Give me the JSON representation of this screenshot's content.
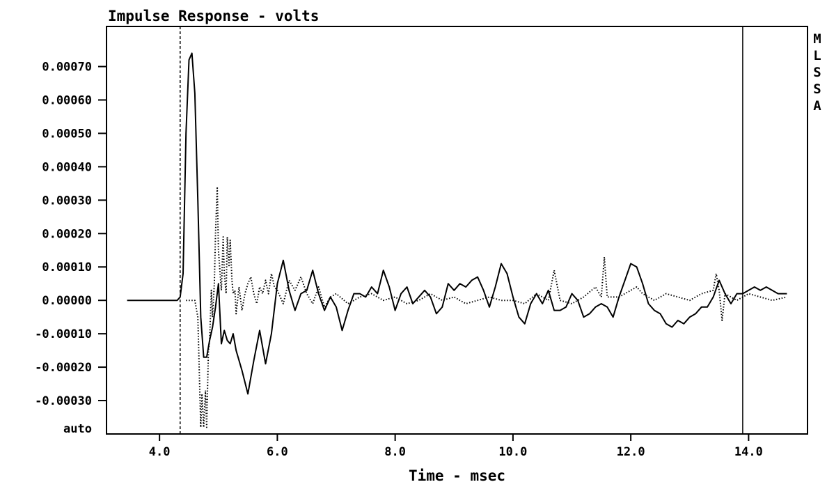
{
  "chart_data": {
    "type": "line",
    "title": "Impulse Response - volts",
    "xlabel": "Time - msec",
    "ylabel": "",
    "side_label": [
      "M",
      "L",
      "S",
      "S",
      "A"
    ],
    "xlim": [
      3.1,
      15.0
    ],
    "ylim": [
      -0.0004,
      0.00082
    ],
    "x_ticks": [
      {
        "value": 4.0,
        "label": "4.0"
      },
      {
        "value": 6.0,
        "label": "6.0"
      },
      {
        "value": 8.0,
        "label": "8.0"
      },
      {
        "value": 10.0,
        "label": "10.0"
      },
      {
        "value": 12.0,
        "label": "12.0"
      },
      {
        "value": 14.0,
        "label": "14.0"
      }
    ],
    "y_ticks": [
      {
        "value": 0.0007,
        "label": "0.00070"
      },
      {
        "value": 0.0006,
        "label": "0.00060"
      },
      {
        "value": 0.0005,
        "label": "0.00050"
      },
      {
        "value": 0.0004,
        "label": "0.00040"
      },
      {
        "value": 0.0003,
        "label": "0.00030"
      },
      {
        "value": 0.0002,
        "label": "0.00020"
      },
      {
        "value": 0.0001,
        "label": "0.00010"
      },
      {
        "value": 0.0,
        "label": "0.00000"
      },
      {
        "value": -0.0001,
        "label": "-0.00010"
      },
      {
        "value": -0.0002,
        "label": "-0.00020"
      },
      {
        "value": -0.0003,
        "label": "-0.00030"
      }
    ],
    "y_bottom_label": "auto",
    "grid": false,
    "markers": [
      {
        "x": 4.35,
        "style": "dashed"
      },
      {
        "x": 13.9,
        "style": "solid"
      }
    ],
    "series": [
      {
        "style": "solid",
        "x": [
          3.45,
          4.0,
          4.3,
          4.35,
          4.4,
          4.45,
          4.5,
          4.55,
          4.6,
          4.65,
          4.7,
          4.75,
          4.8,
          4.85,
          4.9,
          4.95,
          5.0,
          5.05,
          5.1,
          5.15,
          5.2,
          5.25,
          5.3,
          5.4,
          5.5,
          5.6,
          5.7,
          5.8,
          5.9,
          6.0,
          6.1,
          6.2,
          6.3,
          6.4,
          6.5,
          6.6,
          6.7,
          6.8,
          6.9,
          7.0,
          7.1,
          7.2,
          7.3,
          7.4,
          7.5,
          7.6,
          7.7,
          7.8,
          7.9,
          8.0,
          8.1,
          8.2,
          8.3,
          8.4,
          8.5,
          8.6,
          8.7,
          8.8,
          8.9,
          9.0,
          9.1,
          9.2,
          9.3,
          9.4,
          9.5,
          9.6,
          9.7,
          9.8,
          9.9,
          10.0,
          10.1,
          10.2,
          10.3,
          10.4,
          10.5,
          10.6,
          10.7,
          10.8,
          10.9,
          11.0,
          11.1,
          11.2,
          11.3,
          11.4,
          11.5,
          11.6,
          11.7,
          11.8,
          11.9,
          12.0,
          12.1,
          12.2,
          12.3,
          12.4,
          12.5,
          12.6,
          12.7,
          12.8,
          12.9,
          13.0,
          13.1,
          13.2,
          13.3,
          13.4,
          13.5,
          13.6,
          13.7,
          13.8,
          13.9,
          14.0,
          14.1,
          14.2,
          14.3,
          14.4,
          14.5,
          14.65
        ],
        "y": [
          0.0,
          0.0,
          0.0,
          1e-05,
          8e-05,
          0.0005,
          0.00072,
          0.00074,
          0.00062,
          0.0003,
          -5e-05,
          -0.00017,
          -0.00017,
          -0.00012,
          -8e-05,
          -2e-05,
          5e-05,
          -0.00013,
          -9e-05,
          -0.00012,
          -0.00013,
          -0.0001,
          -0.00015,
          -0.00021,
          -0.00028,
          -0.00018,
          -9e-05,
          -0.00019,
          -0.0001,
          5e-05,
          0.00012,
          3e-05,
          -3e-05,
          2e-05,
          3e-05,
          9e-05,
          2e-05,
          -3e-05,
          1e-05,
          -2e-05,
          -9e-05,
          -3e-05,
          2e-05,
          2e-05,
          1e-05,
          4e-05,
          2e-05,
          9e-05,
          4e-05,
          -3e-05,
          2e-05,
          4e-05,
          -1e-05,
          1e-05,
          3e-05,
          1e-05,
          -4e-05,
          -2e-05,
          5e-05,
          3e-05,
          5e-05,
          4e-05,
          6e-05,
          7e-05,
          3e-05,
          -2e-05,
          4e-05,
          0.00011,
          8e-05,
          1e-05,
          -5e-05,
          -7e-05,
          -1e-05,
          2e-05,
          -1e-05,
          3e-05,
          -3e-05,
          -3e-05,
          -2e-05,
          2e-05,
          0.0,
          -5e-05,
          -4e-05,
          -2e-05,
          -1e-05,
          -2e-05,
          -5e-05,
          1e-05,
          6e-05,
          0.00011,
          0.0001,
          5e-05,
          -1e-05,
          -3e-05,
          -4e-05,
          -7e-05,
          -8e-05,
          -6e-05,
          -7e-05,
          -5e-05,
          -4e-05,
          -2e-05,
          -2e-05,
          1e-05,
          6e-05,
          2e-05,
          -1e-05,
          2e-05,
          2e-05,
          3e-05,
          4e-05,
          3e-05,
          4e-05,
          3e-05,
          2e-05,
          2e-05
        ]
      },
      {
        "style": "dotted",
        "x": [
          4.45,
          4.5,
          4.55,
          4.6,
          4.65,
          4.7,
          4.72,
          4.75,
          4.78,
          4.8,
          4.83,
          4.85,
          4.88,
          4.9,
          4.93,
          4.95,
          4.98,
          5.0,
          5.02,
          5.05,
          5.08,
          5.1,
          5.13,
          5.15,
          5.18,
          5.2,
          5.23,
          5.25,
          5.28,
          5.3,
          5.35,
          5.4,
          5.45,
          5.5,
          5.55,
          5.6,
          5.65,
          5.7,
          5.75,
          5.8,
          5.85,
          5.9,
          5.95,
          6.0,
          6.1,
          6.2,
          6.3,
          6.4,
          6.5,
          6.6,
          6.7,
          6.8,
          6.9,
          7.0,
          7.2,
          7.4,
          7.6,
          7.8,
          8.0,
          8.2,
          8.4,
          8.6,
          8.8,
          9.0,
          9.2,
          9.4,
          9.6,
          9.8,
          10.0,
          10.2,
          10.4,
          10.6,
          10.7,
          10.8,
          11.0,
          11.2,
          11.4,
          11.5,
          11.55,
          11.6,
          11.8,
          12.0,
          12.1,
          12.2,
          12.4,
          12.6,
          12.8,
          13.0,
          13.2,
          13.4,
          13.45,
          13.5,
          13.55,
          13.6,
          13.8,
          14.0,
          14.2,
          14.4,
          14.65
        ],
        "y": [
          0.0,
          0.0,
          0.0,
          0.0,
          -5e-05,
          -0.00038,
          -0.00028,
          -0.00038,
          -0.00027,
          -0.00038,
          -0.00015,
          -0.00012,
          3e-05,
          -5e-05,
          5e-05,
          0.0002,
          0.00034,
          0.00015,
          0.0001,
          3e-05,
          0.00019,
          8e-05,
          2e-05,
          0.00019,
          0.0001,
          0.00018,
          6e-05,
          2e-05,
          3e-05,
          -4e-05,
          4e-05,
          -3e-05,
          2e-05,
          5e-05,
          7e-05,
          2e-05,
          -1e-05,
          4e-05,
          2e-05,
          6e-05,
          2e-05,
          8e-05,
          4e-05,
          3e-05,
          -1e-05,
          6e-05,
          3e-05,
          7e-05,
          2e-05,
          -1e-05,
          4e-05,
          -2e-05,
          1e-05,
          2e-05,
          -1e-05,
          1e-05,
          2e-05,
          0.0,
          1e-05,
          -1e-05,
          0.0,
          2e-05,
          0.0,
          1e-05,
          -1e-05,
          0.0,
          1e-05,
          0.0,
          0.0,
          -1e-05,
          2e-05,
          0.0,
          9e-05,
          0.0,
          -1e-05,
          1e-05,
          4e-05,
          1e-05,
          0.00013,
          1e-05,
          1e-05,
          3e-05,
          4e-05,
          2e-05,
          0.0,
          2e-05,
          1e-05,
          0.0,
          2e-05,
          3e-05,
          8e-05,
          3e-05,
          -6e-05,
          2e-05,
          0.0,
          2e-05,
          1e-05,
          0.0,
          1e-05
        ]
      }
    ]
  }
}
